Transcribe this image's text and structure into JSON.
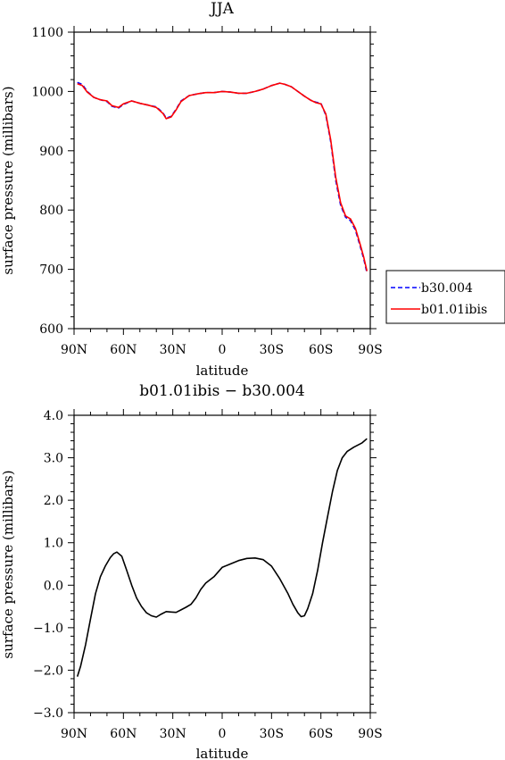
{
  "chart_data": [
    {
      "type": "line",
      "title": "JJA",
      "xlabel": "latitude",
      "ylabel": "surface pressure (millibars)",
      "xlim": [
        -90,
        90
      ],
      "ylim": [
        600,
        1100
      ],
      "x_ticks": [
        -90,
        -60,
        -30,
        0,
        30,
        60,
        90
      ],
      "x_tick_labels": [
        "90N",
        "60N",
        "30N",
        "0",
        "30S",
        "60S",
        "90S"
      ],
      "y_ticks": [
        600,
        700,
        800,
        900,
        1000,
        1100
      ],
      "y_tick_labels": [
        "600",
        "700",
        "800",
        "900",
        "1000",
        "1100"
      ],
      "legend_position": "right",
      "x": [
        -88,
        -85,
        -82,
        -78,
        -74,
        -70,
        -67,
        -63,
        -60,
        -55,
        -50,
        -45,
        -40,
        -36,
        -34,
        -31,
        -28,
        -25,
        -20,
        -15,
        -10,
        -5,
        0,
        5,
        10,
        15,
        20,
        25,
        30,
        35,
        38,
        42,
        46,
        50,
        54,
        57,
        60,
        63,
        66,
        69,
        72,
        75,
        78,
        81,
        84,
        86,
        88
      ],
      "series": [
        {
          "name": "b30.004",
          "color": "#0000ff",
          "dash": "dashed",
          "values": [
            1015,
            1012,
            1000,
            990,
            986,
            983,
            975,
            972,
            978,
            984,
            980,
            977,
            974,
            964,
            955,
            958,
            970,
            984,
            993,
            996,
            998,
            998,
            1000,
            999,
            997,
            997,
            1000,
            1004,
            1010,
            1014,
            1012,
            1008,
            1000,
            992,
            985,
            982,
            980,
            960,
            915,
            850,
            808,
            788,
            782,
            766,
            738,
            718,
            694
          ]
        },
        {
          "name": "b01.01ibis",
          "color": "#ff0000",
          "dash": "solid",
          "values": [
            1013,
            1010,
            999,
            990,
            986,
            984,
            976,
            973,
            979,
            984,
            980,
            977,
            973,
            963,
            954,
            957,
            969,
            983,
            993,
            996,
            998,
            998,
            1000,
            999,
            997,
            997,
            1000,
            1004,
            1010,
            1014,
            1012,
            1008,
            1000,
            992,
            985,
            981,
            979,
            962,
            918,
            855,
            812,
            790,
            785,
            769,
            741,
            721,
            697
          ]
        }
      ]
    },
    {
      "type": "line",
      "title": "b01.01ibis − b30.004",
      "xlabel": "latitude",
      "ylabel": "surface pressure (millibars)",
      "xlim": [
        -90,
        90
      ],
      "ylim": [
        -3,
        4
      ],
      "x_ticks": [
        -90,
        -60,
        -30,
        0,
        30,
        60,
        90
      ],
      "x_tick_labels": [
        "90N",
        "60N",
        "30N",
        "0",
        "30S",
        "60S",
        "90S"
      ],
      "y_ticks": [
        -3,
        -2,
        -1,
        0,
        1,
        2,
        3,
        4
      ],
      "y_tick_labels": [
        "−3.0",
        "−2.0",
        "−1.0",
        "0.0",
        "1.0",
        "2.0",
        "3.0",
        "4.0"
      ],
      "x": [
        -88,
        -86,
        -83,
        -80,
        -77,
        -74,
        -71,
        -68,
        -66,
        -64,
        -61,
        -58,
        -55,
        -52,
        -49,
        -46,
        -43,
        -40,
        -37,
        -34,
        -31,
        -28,
        -25,
        -22,
        -19,
        -16,
        -13,
        -10,
        -5,
        0,
        5,
        10,
        15,
        20,
        25,
        30,
        35,
        40,
        43,
        46,
        48,
        50,
        52,
        55,
        58,
        61,
        64,
        67,
        70,
        73,
        76,
        80,
        85,
        88
      ],
      "series": [
        {
          "color": "#000000",
          "values": [
            -2.15,
            -1.9,
            -1.4,
            -0.8,
            -0.2,
            0.2,
            0.45,
            0.65,
            0.74,
            0.78,
            0.68,
            0.35,
            0.0,
            -0.3,
            -0.5,
            -0.65,
            -0.72,
            -0.75,
            -0.68,
            -0.62,
            -0.63,
            -0.64,
            -0.58,
            -0.52,
            -0.45,
            -0.3,
            -0.1,
            0.05,
            0.2,
            0.42,
            0.5,
            0.58,
            0.63,
            0.64,
            0.6,
            0.45,
            0.15,
            -0.2,
            -0.45,
            -0.65,
            -0.74,
            -0.72,
            -0.55,
            -0.2,
            0.35,
            1.0,
            1.6,
            2.2,
            2.7,
            3.0,
            3.15,
            3.25,
            3.35,
            3.45
          ]
        }
      ]
    }
  ]
}
